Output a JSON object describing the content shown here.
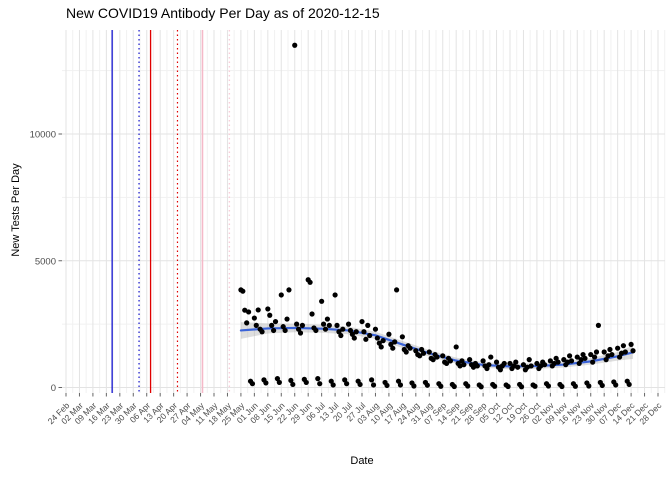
{
  "chart_data": {
    "type": "scatter",
    "title": "New COVID19 Antibody Per Day as of 2020-12-15",
    "xlabel": "Date",
    "ylabel": "New Tests Per Day",
    "colors": {
      "point": "#000000",
      "smooth_line": "#3A63D8",
      "confidence_band": "#A0A0A0",
      "grid_major": "#E3E3E3",
      "grid_minor": "#F1F1F1",
      "tick_text": "#4D4D4D",
      "axis_tick": "#666666"
    },
    "x_axis": {
      "start": "2020-02-24",
      "end": "2020-12-28",
      "tick_interval_days": 7,
      "tick_labels": [
        "24 Feb",
        "02 Mar",
        "09 Mar",
        "16 Mar",
        "23 Mar",
        "30 Mar",
        "06 Apr",
        "13 Apr",
        "20 Apr",
        "27 Apr",
        "04 May",
        "11 May",
        "18 May",
        "25 May",
        "01 Jun",
        "08 Jun",
        "15 Jun",
        "22 Jun",
        "29 Jun",
        "06 Jul",
        "13 Jul",
        "20 Jul",
        "27 Jul",
        "03 Aug",
        "10 Aug",
        "17 Aug",
        "24 Aug",
        "31 Aug",
        "07 Sep",
        "14 Sep",
        "21 Sep",
        "28 Sep",
        "05 Oct",
        "12 Oct",
        "19 Oct",
        "26 Oct",
        "02 Nov",
        "09 Nov",
        "16 Nov",
        "23 Nov",
        "30 Nov",
        "07 Dec",
        "14 Dec",
        "21 Dec",
        "28 Dec"
      ]
    },
    "y_axis": {
      "ticks": [
        0,
        5000,
        10000
      ],
      "minor_gridlines": [
        2500,
        7500,
        12500
      ],
      "range": [
        0,
        14100
      ]
    },
    "reference_lines": [
      {
        "date": "2020-03-19",
        "color": "#0000CC",
        "style": "solid",
        "width": 1.2
      },
      {
        "date": "2020-04-02",
        "color": "#1414CC",
        "style": "dotted",
        "width": 1.2
      },
      {
        "date": "2020-04-08",
        "color": "#E00000",
        "style": "solid",
        "width": 1.3
      },
      {
        "date": "2020-04-22",
        "color": "#E00000",
        "style": "dotted",
        "width": 1.2
      },
      {
        "date": "2020-05-05",
        "color": "#F5B9C8",
        "style": "solid",
        "width": 1.6
      },
      {
        "date": "2020-05-19",
        "color": "#F8CDD8",
        "style": "dotted",
        "width": 1.4
      }
    ],
    "points": {
      "start_date": "2020-05-25",
      "daily_values": [
        3850,
        3800,
        3050,
        2550,
        2980,
        250,
        150,
        2740,
        2450,
        3060,
        2300,
        2200,
        300,
        180,
        3100,
        2850,
        2450,
        2250,
        2600,
        350,
        200,
        3650,
        2400,
        2250,
        2700,
        3850,
        280,
        120,
        13500,
        2500,
        2300,
        2150,
        2450,
        320,
        200,
        4250,
        4150,
        2900,
        2350,
        2250,
        350,
        150,
        3400,
        2500,
        2300,
        2700,
        2450,
        250,
        100,
        3650,
        2450,
        2200,
        2050,
        2300,
        300,
        150,
        2500,
        2250,
        2100,
        1950,
        2200,
        250,
        120,
        2600,
        2200,
        1900,
        2450,
        2050,
        300,
        100,
        2300,
        1950,
        1750,
        1600,
        1850,
        200,
        80,
        2100,
        1700,
        1550,
        1800,
        3850,
        250,
        100,
        2000,
        1500,
        1400,
        1650,
        1550,
        180,
        60,
        1450,
        1300,
        1250,
        1500,
        1350,
        200,
        90,
        1400,
        1150,
        1100,
        1300,
        1200,
        150,
        50,
        1250,
        1000,
        950,
        1150,
        1050,
        120,
        40,
        1600,
        950,
        850,
        1050,
        900,
        150,
        60,
        1100,
        900,
        800,
        950,
        850,
        100,
        30,
        1050,
        850,
        750,
        900,
        1200,
        120,
        50,
        1000,
        800,
        700,
        850,
        950,
        100,
        40,
        950,
        750,
        850,
        1000,
        800,
        120,
        30,
        900,
        700,
        800,
        1100,
        850,
        100,
        50,
        950,
        750,
        850,
        1000,
        900,
        150,
        60,
        1050,
        850,
        950,
        1150,
        1000,
        120,
        40,
        1100,
        900,
        1000,
        1250,
        1050,
        150,
        50,
        1200,
        950,
        1100,
        1300,
        1150,
        180,
        60,
        1300,
        1000,
        1200,
        1400,
        2450,
        200,
        80,
        1400,
        1100,
        1250,
        1500,
        1300,
        220,
        100,
        1550,
        1200,
        1350,
        1650,
        1400,
        250,
        120,
        1700,
        1450
      ]
    },
    "smooth_line": {
      "description": "loess fit with confidence band, entries are [date, value, ci_halfwidth]",
      "points": [
        [
          "2020-05-25",
          2250,
          330
        ],
        [
          "2020-06-08",
          2330,
          200
        ],
        [
          "2020-06-22",
          2350,
          170
        ],
        [
          "2020-07-06",
          2320,
          160
        ],
        [
          "2020-07-20",
          2250,
          150
        ],
        [
          "2020-08-03",
          2060,
          140
        ],
        [
          "2020-08-17",
          1700,
          140
        ],
        [
          "2020-08-31",
          1350,
          130
        ],
        [
          "2020-09-14",
          1060,
          120
        ],
        [
          "2020-09-28",
          890,
          110
        ],
        [
          "2020-10-12",
          830,
          110
        ],
        [
          "2020-10-26",
          845,
          110
        ],
        [
          "2020-11-09",
          905,
          115
        ],
        [
          "2020-11-23",
          1030,
          130
        ],
        [
          "2020-12-07",
          1230,
          170
        ],
        [
          "2020-12-15",
          1390,
          260
        ]
      ]
    }
  }
}
